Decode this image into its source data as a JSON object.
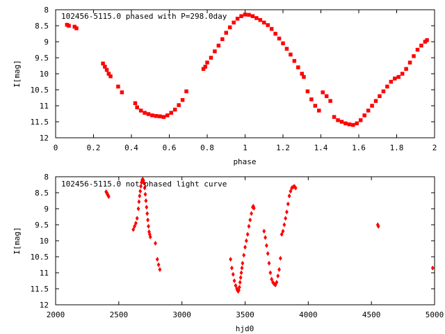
{
  "chart_data": [
    {
      "type": "scatter",
      "title": "102456-5115.0 phased with P=298.0day",
      "xlabel": "phase",
      "ylabel": "I[mag]",
      "xlim": [
        0,
        2
      ],
      "ylim": [
        12,
        8
      ],
      "y_inverted": true,
      "xticks": [
        "0",
        "0.2",
        "0.4",
        "0.6",
        "0.8",
        "1",
        "1.2",
        "1.4",
        "1.6",
        "1.8",
        "2"
      ],
      "xtick_values": [
        0,
        0.2,
        0.4,
        0.6,
        0.8,
        1,
        1.2,
        1.4,
        1.6,
        1.8,
        2
      ],
      "yticks": [
        "8",
        "8.5",
        "9",
        "9.5",
        "10",
        "10.5",
        "11",
        "11.5",
        "12"
      ],
      "ytick_values": [
        8,
        8.5,
        9,
        9.5,
        10,
        10.5,
        11,
        11.5,
        12
      ],
      "marker_color": "#ff0000",
      "grid": false,
      "series": [
        {
          "x": [
            0.06,
            0.07,
            0.1,
            0.11,
            0.25,
            0.26,
            0.27,
            0.28,
            0.29,
            0.33,
            0.35,
            0.42,
            0.43,
            0.45,
            0.47,
            0.49,
            0.51,
            0.53,
            0.55,
            0.57,
            0.59,
            0.61,
            0.63,
            0.65,
            0.67,
            0.69,
            0.78,
            0.79,
            0.8,
            0.82,
            0.84,
            0.86,
            0.88,
            0.9,
            0.92,
            0.94,
            0.96,
            0.98,
            1.0,
            1.02,
            1.04,
            1.06,
            1.08,
            1.1,
            1.12,
            1.14,
            1.16,
            1.18,
            1.2,
            1.22,
            1.24,
            1.26,
            1.28,
            1.3,
            1.31,
            1.33,
            1.35,
            1.37,
            1.39,
            1.41,
            1.43,
            1.45,
            1.47,
            1.49,
            1.51,
            1.53,
            1.55,
            1.57,
            1.59,
            1.61,
            1.63,
            1.65,
            1.67,
            1.69,
            1.71,
            1.73,
            1.75,
            1.77,
            1.79,
            1.81,
            1.83,
            1.85,
            1.87,
            1.89,
            1.91,
            1.93,
            1.95,
            1.96
          ],
          "y": [
            8.47,
            8.5,
            8.53,
            8.58,
            9.68,
            9.78,
            9.88,
            10.0,
            10.08,
            10.4,
            10.58,
            10.92,
            11.05,
            11.15,
            11.22,
            11.26,
            11.3,
            11.32,
            11.33,
            11.35,
            11.3,
            11.22,
            11.12,
            10.98,
            10.82,
            10.55,
            9.85,
            9.78,
            9.65,
            9.5,
            9.3,
            9.12,
            8.92,
            8.72,
            8.55,
            8.4,
            8.28,
            8.2,
            8.15,
            8.16,
            8.2,
            8.26,
            8.32,
            8.4,
            8.48,
            8.6,
            8.75,
            8.9,
            9.05,
            9.22,
            9.4,
            9.6,
            9.8,
            10.0,
            10.1,
            10.55,
            10.8,
            11.0,
            11.15,
            10.58,
            10.7,
            10.85,
            11.35,
            11.45,
            11.5,
            11.55,
            11.58,
            11.6,
            11.55,
            11.45,
            11.3,
            11.15,
            11.0,
            10.85,
            10.7,
            10.55,
            10.4,
            10.25,
            10.15,
            10.1,
            10.0,
            9.85,
            9.65,
            9.45,
            9.25,
            9.12,
            9.0,
            8.95
          ]
        }
      ]
    },
    {
      "type": "scatter",
      "title": "102456-5115.0 not phased light curve",
      "xlabel": "hjd0",
      "ylabel": "I[mag]",
      "xlim": [
        2000,
        5000
      ],
      "ylim": [
        12,
        8
      ],
      "y_inverted": true,
      "xticks": [
        "2000",
        "2500",
        "3000",
        "3500",
        "4000",
        "4500",
        "5000"
      ],
      "xtick_values": [
        2000,
        2500,
        3000,
        3500,
        4000,
        4500,
        5000
      ],
      "yticks": [
        "8",
        "8.5",
        "9",
        "9.5",
        "10",
        "10.5",
        "11",
        "11.5",
        "12"
      ],
      "ytick_values": [
        8,
        8.5,
        9,
        9.5,
        10,
        10.5,
        11,
        11.5,
        12
      ],
      "marker_color": "#ff0000",
      "grid": false,
      "series": [
        {
          "x": [
            2400,
            2405,
            2410,
            2415,
            2420,
            2615,
            2625,
            2635,
            2645,
            2655,
            2660,
            2665,
            2670,
            2675,
            2680,
            2685,
            2690,
            2695,
            2700,
            2705,
            2710,
            2715,
            2720,
            2725,
            2730,
            2735,
            2740,
            2745,
            2750,
            2790,
            2805,
            2815,
            2825,
            3385,
            3395,
            3405,
            3415,
            3425,
            3435,
            3440,
            3445,
            3450,
            3455,
            3460,
            3465,
            3470,
            3475,
            3480,
            3490,
            3500,
            3510,
            3520,
            3530,
            3540,
            3550,
            3560,
            3565,
            3570,
            3650,
            3660,
            3670,
            3680,
            3690,
            3700,
            3710,
            3720,
            3730,
            3740,
            3750,
            3760,
            3770,
            3780,
            3790,
            3800,
            3810,
            3820,
            3830,
            3840,
            3850,
            3860,
            3870,
            3880,
            3890,
            3900,
            4550,
            4555,
            4985
          ],
          "y": [
            8.47,
            8.5,
            8.55,
            8.58,
            8.62,
            9.65,
            9.55,
            9.45,
            9.3,
            9.0,
            8.78,
            8.6,
            8.45,
            8.3,
            8.18,
            8.1,
            8.08,
            8.12,
            8.2,
            8.35,
            8.55,
            8.75,
            8.95,
            9.15,
            9.35,
            9.55,
            9.72,
            9.8,
            9.88,
            10.08,
            10.58,
            10.75,
            10.9,
            10.58,
            10.85,
            11.05,
            11.25,
            11.4,
            11.5,
            11.55,
            11.58,
            11.55,
            11.45,
            11.3,
            11.15,
            11.0,
            10.85,
            10.7,
            10.45,
            10.2,
            10.0,
            9.8,
            9.55,
            9.35,
            9.15,
            8.95,
            8.92,
            8.98,
            9.7,
            9.9,
            10.15,
            10.4,
            10.7,
            11.0,
            11.2,
            11.3,
            11.35,
            11.38,
            11.3,
            11.1,
            10.9,
            10.55,
            9.8,
            9.7,
            9.5,
            9.3,
            9.1,
            8.85,
            8.6,
            8.45,
            8.35,
            8.32,
            8.3,
            8.35,
            9.5,
            9.55,
            10.85
          ]
        }
      ]
    }
  ]
}
